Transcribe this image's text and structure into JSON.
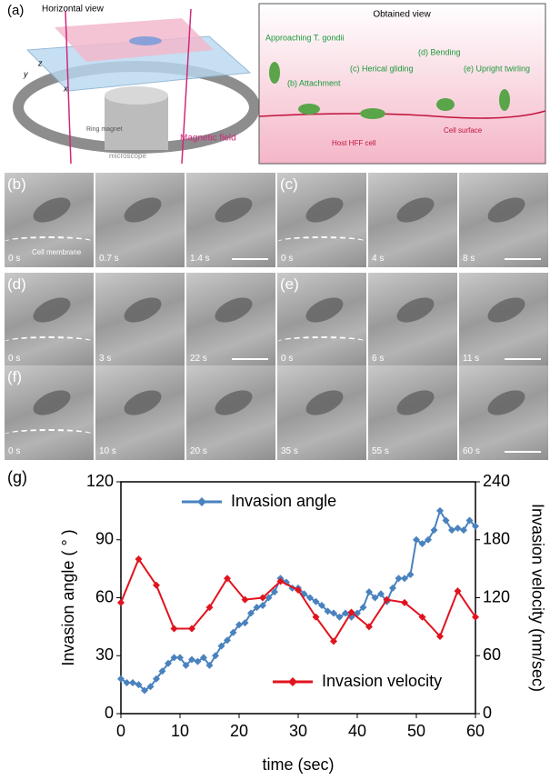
{
  "panel_a": {
    "label": "(a)",
    "horizontal_view": "Horizontal view",
    "axis_y": "y",
    "axis_z": "z",
    "axis_x": "x",
    "ring_magnet": "Ring magnet",
    "microscope": "microscope",
    "magnetic_field": "Magnetic field"
  },
  "obtained_view": {
    "title": "Obtained view",
    "approaching": "Approaching T. gondii",
    "attachment": "(b) Attachment",
    "gliding": "(c) Herical gliding",
    "bending": "(d) Bending",
    "twirling": "(e) Upright twirling",
    "host": "Host HFF cell",
    "surface": "Cell surface"
  },
  "micrographs": [
    {
      "label": "(b)",
      "times": [
        "0 s",
        "0.7 s",
        "1.4 s"
      ],
      "note": "Cell membrane"
    },
    {
      "label": "(c)",
      "times": [
        "0 s",
        "4 s",
        "8 s"
      ]
    },
    {
      "label": "(d)",
      "times": [
        "0 s",
        "3 s",
        "22 s"
      ]
    },
    {
      "label": "(e)",
      "times": [
        "0 s",
        "6 s",
        "11 s"
      ]
    },
    {
      "label": "(f)",
      "times": [
        "0 s",
        "10 s",
        "20 s",
        "35 s",
        "55 s",
        "60 s"
      ]
    }
  ],
  "chart_data": {
    "type": "line",
    "label": "(g)",
    "xlabel": "time (sec)",
    "ylabel": "Invasion angle ( ° )",
    "y2label": "Invasion velocity (nm/sec)",
    "xlim": [
      0,
      60
    ],
    "xticks": [
      0,
      10,
      20,
      30,
      40,
      50,
      60
    ],
    "ylim": [
      0,
      120
    ],
    "yticks": [
      0,
      30,
      60,
      90,
      120
    ],
    "y2lim": [
      0,
      240
    ],
    "y2ticks": [
      0,
      60,
      120,
      180,
      240
    ],
    "series": [
      {
        "name": "Invasion angle",
        "color": "#4a82bf",
        "x": [
          0,
          1,
          2,
          3,
          4,
          5,
          6,
          7,
          8,
          9,
          10,
          11,
          12,
          13,
          14,
          15,
          16,
          17,
          18,
          19,
          20,
          21,
          22,
          23,
          24,
          25,
          26,
          27,
          28,
          29,
          30,
          31,
          32,
          33,
          34,
          35,
          36,
          37,
          38,
          39,
          40,
          41,
          42,
          43,
          44,
          45,
          46,
          47,
          48,
          49,
          50,
          51,
          52,
          53,
          54,
          55,
          56,
          57,
          58,
          59,
          60
        ],
        "values": [
          18,
          16,
          16,
          15,
          12,
          14,
          18,
          22,
          26,
          29,
          29,
          25,
          28,
          27,
          29,
          25,
          30,
          35,
          38,
          42,
          46,
          47,
          52,
          55,
          56,
          60,
          63,
          70,
          68,
          65,
          65,
          62,
          60,
          58,
          56,
          53,
          52,
          50,
          52,
          50,
          52,
          55,
          63,
          60,
          62,
          58,
          65,
          70,
          70,
          72,
          90,
          88,
          90,
          95,
          105,
          100,
          95,
          96,
          95,
          100,
          97
        ]
      },
      {
        "name": "Invasion velocity",
        "color": "#e0141e",
        "axis": "y2",
        "x": [
          0,
          3,
          6,
          9,
          12,
          15,
          18,
          21,
          24,
          27,
          30,
          33,
          36,
          39,
          42,
          45,
          48,
          51,
          54,
          57,
          60
        ],
        "values": [
          115,
          160,
          133,
          88,
          88,
          110,
          140,
          118,
          120,
          137,
          128,
          100,
          75,
          105,
          90,
          118,
          115,
          100,
          80,
          127,
          100
        ]
      }
    ]
  }
}
